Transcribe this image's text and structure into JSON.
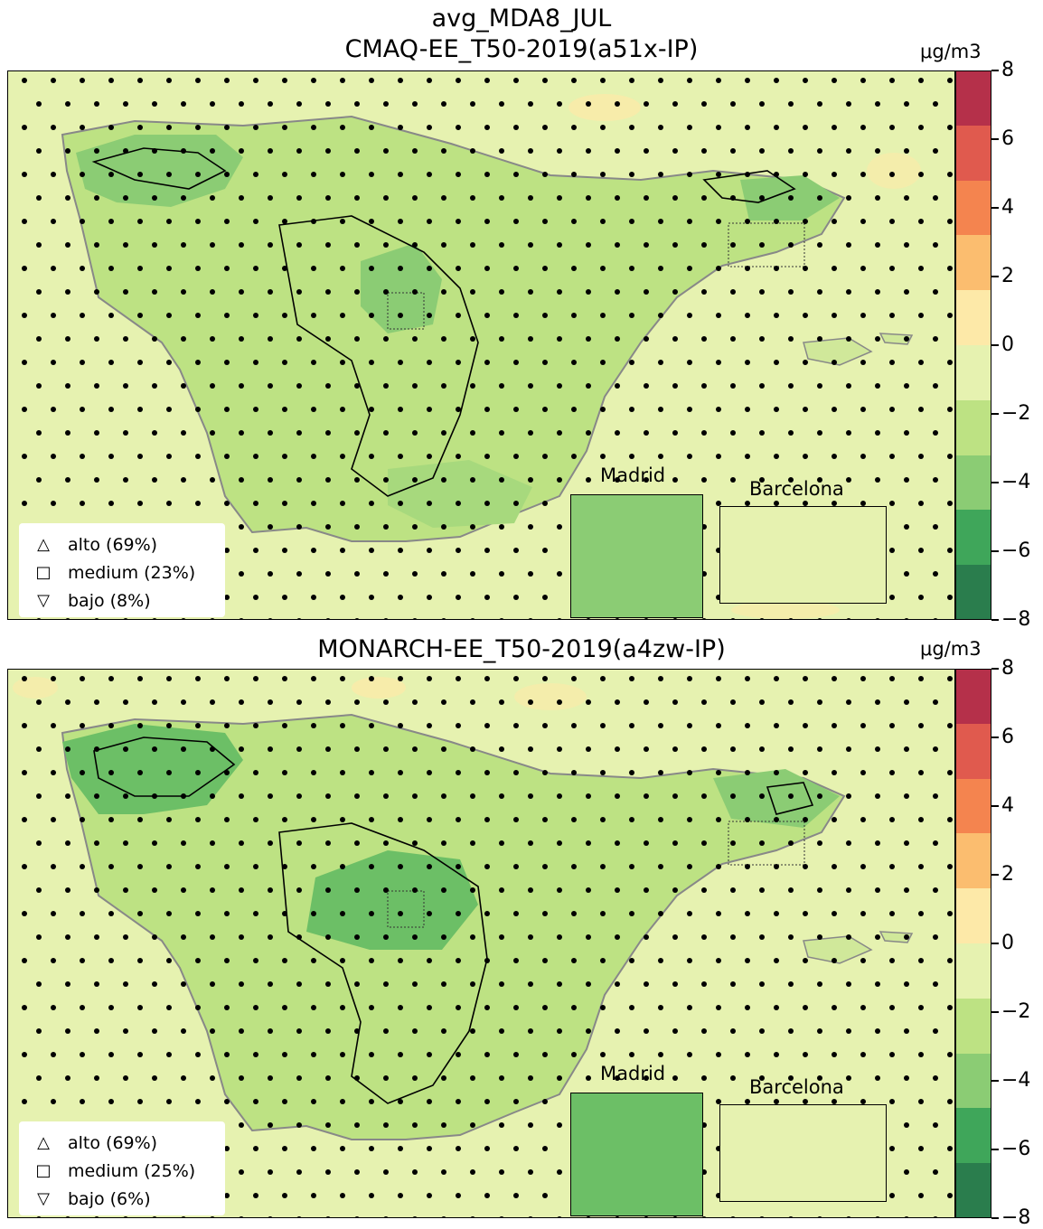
{
  "top": {
    "title_line1": "avg_MDA8_JUL",
    "title_line2": "CMAQ-EE_T50-2019(a51x-IP)",
    "unit": "μg/m3",
    "legend": [
      {
        "symbol": "triangle-up",
        "label": "alto (69%)"
      },
      {
        "symbol": "square",
        "label": "medium (23%)"
      },
      {
        "symbol": "triangle-down",
        "label": "bajo (8%)"
      }
    ],
    "insets": [
      "Madrid",
      "Barcelona"
    ]
  },
  "bottom": {
    "title": "MONARCH-EE_T50-2019(a4zw-IP)",
    "unit": "μg/m3",
    "legend": [
      {
        "symbol": "triangle-up",
        "label": "alto (69%)"
      },
      {
        "symbol": "square",
        "label": "medium (25%)"
      },
      {
        "symbol": "triangle-down",
        "label": "bajo (6%)"
      }
    ],
    "insets": [
      "Madrid",
      "Barcelona"
    ]
  },
  "colorbar": {
    "ticks": [
      "8",
      "6",
      "4",
      "2",
      "0",
      "−2",
      "−4",
      "−6",
      "−8"
    ],
    "range": [
      -8,
      8
    ],
    "colors": [
      "#b5304a",
      "#e05a4e",
      "#f4844f",
      "#fbbd6f",
      "#fde9a8",
      "#e6f2b0",
      "#bde283",
      "#8bcc74",
      "#3fa65a",
      "#2a7d4d"
    ]
  }
}
